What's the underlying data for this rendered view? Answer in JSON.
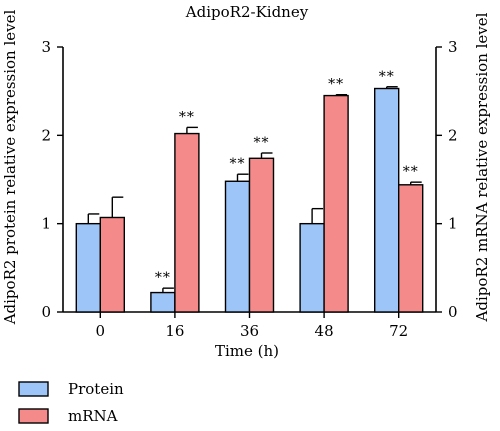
{
  "chart_data": {
    "type": "bar",
    "title": "AdipoR2-Kidney",
    "xlabel": "Time (h)",
    "ylabel_left": "AdipoR2 protein relative expression level",
    "ylabel_right": "AdipoR2 mRNA relative expression level",
    "categories": [
      "0",
      "16",
      "36",
      "48",
      "72"
    ],
    "ylim": [
      0,
      3
    ],
    "yticks": [
      "0",
      "1",
      "2",
      "3"
    ],
    "series": [
      {
        "name": "Protein",
        "color": "#9ec5f7",
        "values": [
          1.0,
          0.22,
          1.48,
          1.0,
          2.53
        ],
        "errors": [
          0.11,
          0.05,
          0.08,
          0.17,
          0.02
        ],
        "significance": [
          "",
          "**",
          "**",
          "",
          "**"
        ]
      },
      {
        "name": "mRNA",
        "color": "#f58a8a",
        "values": [
          1.07,
          2.02,
          1.74,
          2.45,
          1.44
        ],
        "errors": [
          0.23,
          0.07,
          0.06,
          0.01,
          0.03
        ],
        "significance": [
          "",
          "**",
          "**",
          "**",
          "**"
        ]
      }
    ],
    "legend_position": "bottom-left",
    "grid": false
  }
}
